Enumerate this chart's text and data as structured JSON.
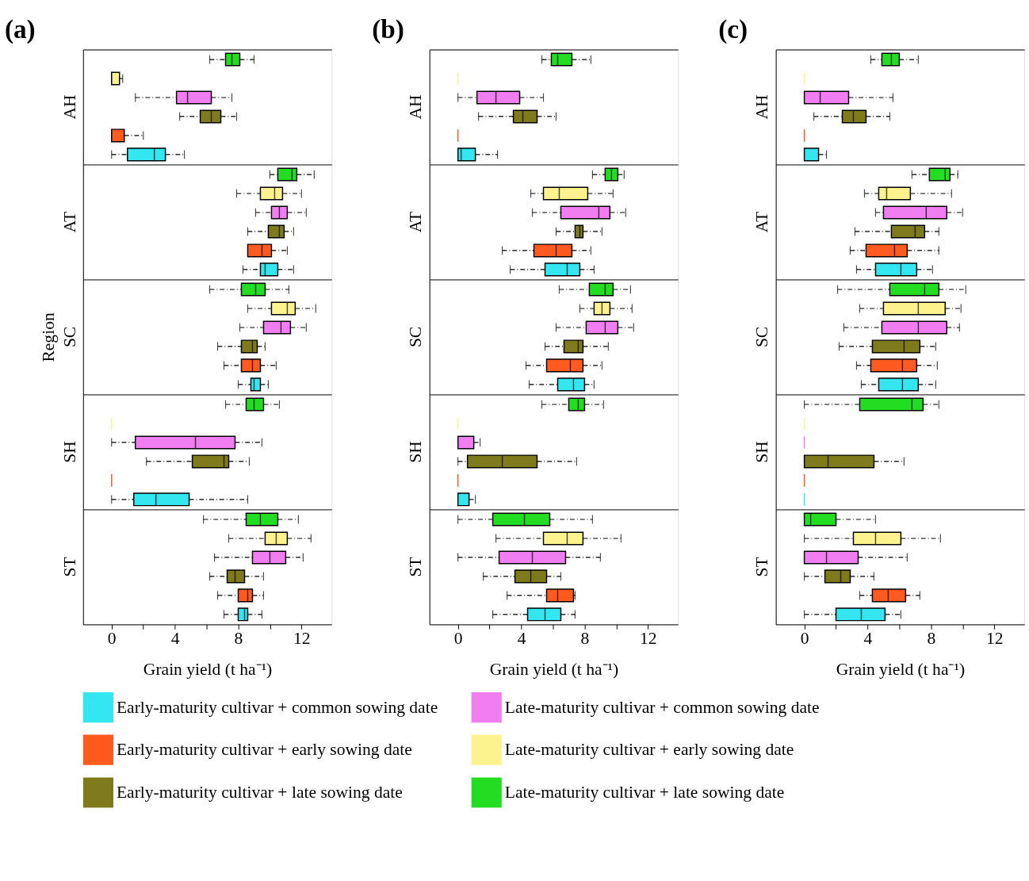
{
  "chart_data": [
    {
      "type": "box",
      "orientation": "horizontal",
      "title": "(a)",
      "xlabel": "Grain yield (t ha⁻¹)",
      "ylabel": "Region",
      "categories": [
        "AH",
        "AT",
        "SC",
        "SH",
        "ST"
      ],
      "xlim": [
        -1.8,
        13.9
      ],
      "xticks": [
        0,
        {
          "value": 2,
          "label": null
        },
        4,
        {
          "value": 6,
          "label": null
        },
        8,
        {
          "value": 10,
          "label": null
        },
        12
      ],
      "legend": "bottom",
      "series": [
        {
          "name": "Early-maturity cultivar + common sowing date",
          "color": "#33e6f0",
          "boxes": [
            {
              "low": 0,
              "q1": 1.0,
              "median": 2.7,
              "q3": 3.4,
              "high": 4.6
            },
            {
              "low": 8.3,
              "q1": 9.4,
              "median": 9.7,
              "q3": 10.5,
              "high": 11.5
            },
            {
              "low": 8.0,
              "q1": 8.8,
              "median": 9.0,
              "q3": 9.4,
              "high": 9.9
            },
            {
              "low": 0,
              "q1": 1.4,
              "median": 2.8,
              "q3": 4.9,
              "high": 8.6
            },
            {
              "low": 7.1,
              "q1": 8.0,
              "median": 8.4,
              "q3": 8.6,
              "high": 9.5
            }
          ]
        },
        {
          "name": "Early-maturity cultivar + early sowing date",
          "color": "#ff5a1f",
          "boxes": [
            {
              "low": 0,
              "q1": 0,
              "median": 0,
              "q3": 0.8,
              "high": 2.0
            },
            {
              "low": 8.6,
              "q1": 8.6,
              "median": 9.5,
              "q3": 10.1,
              "high": 11.1
            },
            {
              "low": 7.1,
              "q1": 8.2,
              "median": 8.9,
              "q3": 9.4,
              "high": 10.4
            },
            {
              "low": 0,
              "q1": 0,
              "median": 0,
              "q3": 0,
              "high": 0
            },
            {
              "low": 6.7,
              "q1": 8.0,
              "median": 8.6,
              "q3": 8.9,
              "high": 9.6
            }
          ]
        },
        {
          "name": "Early-maturity cultivar + late sowing date",
          "color": "#7f7a1c",
          "boxes": [
            {
              "low": 4.3,
              "q1": 5.6,
              "median": 6.3,
              "q3": 6.9,
              "high": 7.9
            },
            {
              "low": 8.6,
              "q1": 9.9,
              "median": 10.6,
              "q3": 10.9,
              "high": 11.5
            },
            {
              "low": 6.7,
              "q1": 8.2,
              "median": 8.9,
              "q3": 9.2,
              "high": 9.7
            },
            {
              "low": 2.2,
              "q1": 5.1,
              "median": 7.1,
              "q3": 7.4,
              "high": 8.7
            },
            {
              "low": 6.2,
              "q1": 7.3,
              "median": 7.8,
              "q3": 8.4,
              "high": 9.6
            }
          ]
        },
        {
          "name": "Late-maturity cultivar + common sowing date",
          "color": "#f07ef0",
          "boxes": [
            {
              "low": 1.5,
              "q1": 4.1,
              "median": 4.8,
              "q3": 6.3,
              "high": 7.6
            },
            {
              "low": 9.1,
              "q1": 10.1,
              "median": 10.6,
              "q3": 11.1,
              "high": 12.3
            },
            {
              "low": 8.1,
              "q1": 9.6,
              "median": 10.7,
              "q3": 11.3,
              "high": 12.3
            },
            {
              "low": 0,
              "q1": 1.5,
              "median": 5.3,
              "q3": 7.8,
              "high": 9.5
            },
            {
              "low": 6.5,
              "q1": 8.9,
              "median": 10.0,
              "q3": 11.0,
              "high": 12.1
            }
          ]
        },
        {
          "name": "Late-maturity cultivar + early sowing date",
          "color": "#fcf38f",
          "boxes": [
            {
              "low": 0,
              "q1": 0,
              "median": 0,
              "q3": 0.5,
              "high": 0.7
            },
            {
              "low": 7.9,
              "q1": 9.4,
              "median": 10.3,
              "q3": 10.8,
              "high": 12.0
            },
            {
              "low": 8.6,
              "q1": 10.1,
              "median": 11.1,
              "q3": 11.6,
              "high": 12.9
            },
            {
              "low": 0,
              "q1": 0,
              "median": 0,
              "q3": 0,
              "high": 0
            },
            {
              "low": 7.4,
              "q1": 9.7,
              "median": 10.4,
              "q3": 11.1,
              "high": 12.6
            }
          ]
        },
        {
          "name": "Late-maturity cultivar + late sowing date",
          "color": "#22dd22",
          "boxes": [
            {
              "low": 6.2,
              "q1": 7.2,
              "median": 7.6,
              "q3": 8.1,
              "high": 9.0
            },
            {
              "low": 10.0,
              "q1": 10.5,
              "median": 11.4,
              "q3": 11.7,
              "high": 12.8
            },
            {
              "low": 6.2,
              "q1": 8.2,
              "median": 9.1,
              "q3": 9.7,
              "high": 11.2
            },
            {
              "low": 7.2,
              "q1": 8.5,
              "median": 9.0,
              "q3": 9.6,
              "high": 10.6
            },
            {
              "low": 5.8,
              "q1": 8.5,
              "median": 9.4,
              "q3": 10.5,
              "high": 11.8
            }
          ]
        }
      ]
    },
    {
      "type": "box",
      "orientation": "horizontal",
      "title": "(b)",
      "xlabel": "Grain yield (t ha⁻¹)",
      "categories": [
        "AH",
        "AT",
        "SC",
        "SH",
        "ST"
      ],
      "xlim": [
        -1.8,
        13.9
      ],
      "xticks": [
        0,
        {
          "value": 2,
          "label": null
        },
        4,
        {
          "value": 6,
          "label": null
        },
        8,
        {
          "value": 10,
          "label": null
        },
        12
      ],
      "legend": "bottom",
      "series": [
        {
          "name": "Early-maturity cultivar + common sowing date",
          "color": "#33e6f0",
          "boxes": [
            {
              "low": 0,
              "q1": 0,
              "median": 0.2,
              "q3": 1.1,
              "high": 2.5
            },
            {
              "low": 3.3,
              "q1": 5.5,
              "median": 6.9,
              "q3": 7.7,
              "high": 8.6
            },
            {
              "low": 4.5,
              "q1": 6.3,
              "median": 7.3,
              "q3": 8.0,
              "high": 8.6
            },
            {
              "low": 0,
              "q1": 0,
              "median": 0,
              "q3": 0.7,
              "high": 1.1
            },
            {
              "low": 2.2,
              "q1": 4.4,
              "median": 5.5,
              "q3": 6.5,
              "high": 7.4
            }
          ]
        },
        {
          "name": "Early-maturity cultivar + early sowing date",
          "color": "#ff5a1f",
          "boxes": [
            {
              "low": 0,
              "q1": 0,
              "median": 0,
              "q3": 0,
              "high": 0
            },
            {
              "low": 2.8,
              "q1": 4.8,
              "median": 6.2,
              "q3": 7.2,
              "high": 8.4
            },
            {
              "low": 4.3,
              "q1": 5.6,
              "median": 7.1,
              "q3": 7.9,
              "high": 9.1
            },
            {
              "low": 0,
              "q1": 0,
              "median": 0,
              "q3": 0,
              "high": 0
            },
            {
              "low": 3.1,
              "q1": 5.6,
              "median": 6.3,
              "q3": 7.3,
              "high": 7.4
            }
          ]
        },
        {
          "name": "Early-maturity cultivar + late sowing date",
          "color": "#7f7a1c",
          "boxes": [
            {
              "low": 1.3,
              "q1": 3.5,
              "median": 4.1,
              "q3": 5.0,
              "high": 6.2
            },
            {
              "low": 6.2,
              "q1": 7.4,
              "median": 7.7,
              "q3": 7.9,
              "high": 9.1
            },
            {
              "low": 5.5,
              "q1": 6.7,
              "median": 7.6,
              "q3": 7.9,
              "high": 9.5
            },
            {
              "low": 0,
              "q1": 0.6,
              "median": 2.8,
              "q3": 5.0,
              "high": 7.5
            },
            {
              "low": 1.6,
              "q1": 3.6,
              "median": 4.6,
              "q3": 5.6,
              "high": 6.5
            }
          ]
        },
        {
          "name": "Late-maturity cultivar + common sowing date",
          "color": "#f07ef0",
          "boxes": [
            {
              "low": 0,
              "q1": 1.2,
              "median": 2.4,
              "q3": 3.9,
              "high": 5.4
            },
            {
              "low": 4.7,
              "q1": 6.5,
              "median": 8.9,
              "q3": 9.6,
              "high": 10.6
            },
            {
              "low": 6.2,
              "q1": 8.1,
              "median": 9.3,
              "q3": 10.1,
              "high": 11.1
            },
            {
              "low": 0,
              "q1": 0,
              "median": 0,
              "q3": 1.0,
              "high": 1.4
            },
            {
              "low": 0,
              "q1": 2.6,
              "median": 4.7,
              "q3": 6.8,
              "high": 9.0
            }
          ]
        },
        {
          "name": "Late-maturity cultivar + early sowing date",
          "color": "#fcf38f",
          "boxes": [
            {
              "low": 0,
              "q1": 0,
              "median": 0,
              "q3": 0,
              "high": 0
            },
            {
              "low": 4.6,
              "q1": 5.4,
              "median": 6.4,
              "q3": 8.2,
              "high": 9.8
            },
            {
              "low": 7.7,
              "q1": 8.6,
              "median": 9.1,
              "q3": 9.6,
              "high": 11.0
            },
            {
              "low": 0,
              "q1": 0,
              "median": 0,
              "q3": 0,
              "high": 0
            },
            {
              "low": 2.4,
              "q1": 5.4,
              "median": 6.9,
              "q3": 7.9,
              "high": 10.3
            }
          ]
        },
        {
          "name": "Late-maturity cultivar + late sowing date",
          "color": "#22dd22",
          "boxes": [
            {
              "low": 5.3,
              "q1": 5.9,
              "median": 6.3,
              "q3": 7.2,
              "high": 8.4
            },
            {
              "low": 8.5,
              "q1": 9.3,
              "median": 9.7,
              "q3": 10.1,
              "high": 10.5
            },
            {
              "low": 6.4,
              "q1": 8.3,
              "median": 9.3,
              "q3": 9.8,
              "high": 10.9
            },
            {
              "low": 5.3,
              "q1": 7.0,
              "median": 7.6,
              "q3": 8.0,
              "high": 9.2
            },
            {
              "low": 0,
              "q1": 2.2,
              "median": 4.2,
              "q3": 5.8,
              "high": 8.5
            }
          ]
        }
      ]
    },
    {
      "type": "box",
      "orientation": "horizontal",
      "title": "(c)",
      "xlabel": "Grain yield (t ha⁻¹)",
      "categories": [
        "AH",
        "AT",
        "SC",
        "SH",
        "ST"
      ],
      "xlim": [
        -1.8,
        13.9
      ],
      "xticks": [
        0,
        {
          "value": 2,
          "label": null
        },
        4,
        {
          "value": 6,
          "label": null
        },
        8,
        {
          "value": 10,
          "label": null
        },
        12
      ],
      "legend": "bottom",
      "series": [
        {
          "name": "Early-maturity cultivar + common sowing date",
          "color": "#33e6f0",
          "boxes": [
            {
              "low": 0,
              "q1": 0,
              "median": 0,
              "q3": 0.9,
              "high": 1.4
            },
            {
              "low": 3.3,
              "q1": 4.5,
              "median": 6.1,
              "q3": 7.1,
              "high": 8.1
            },
            {
              "low": 3.6,
              "q1": 4.7,
              "median": 6.2,
              "q3": 7.2,
              "high": 8.3
            },
            {
              "low": 0,
              "q1": 0,
              "median": 0,
              "q3": 0,
              "high": 0
            },
            {
              "low": 0,
              "q1": 2.0,
              "median": 3.6,
              "q3": 5.1,
              "high": 6.1
            }
          ]
        },
        {
          "name": "Early-maturity cultivar + early sowing date",
          "color": "#ff5a1f",
          "boxes": [
            {
              "low": 0,
              "q1": 0,
              "median": 0,
              "q3": 0,
              "high": 0
            },
            {
              "low": 2.9,
              "q1": 3.9,
              "median": 5.7,
              "q3": 6.5,
              "high": 8.5
            },
            {
              "low": 3.3,
              "q1": 4.2,
              "median": 6.2,
              "q3": 7.1,
              "high": 8.4
            },
            {
              "low": 0,
              "q1": 0,
              "median": 0,
              "q3": 0,
              "high": 0
            },
            {
              "low": 3.5,
              "q1": 4.3,
              "median": 5.3,
              "q3": 6.4,
              "high": 7.3
            }
          ]
        },
        {
          "name": "Early-maturity cultivar + late sowing date",
          "color": "#7f7a1c",
          "boxes": [
            {
              "low": 0.6,
              "q1": 2.4,
              "median": 3.1,
              "q3": 3.9,
              "high": 5.4
            },
            {
              "low": 3.2,
              "q1": 5.5,
              "median": 7.0,
              "q3": 7.6,
              "high": 8.5
            },
            {
              "low": 2.2,
              "q1": 4.3,
              "median": 6.3,
              "q3": 7.3,
              "high": 8.3
            },
            {
              "low": 0,
              "q1": 0,
              "median": 1.5,
              "q3": 4.4,
              "high": 6.3
            },
            {
              "low": 0,
              "q1": 1.3,
              "median": 2.3,
              "q3": 2.9,
              "high": 4.4
            }
          ]
        },
        {
          "name": "Late-maturity cultivar + common sowing date",
          "color": "#f07ef0",
          "boxes": [
            {
              "low": 0,
              "q1": 0,
              "median": 1.0,
              "q3": 2.8,
              "high": 5.6
            },
            {
              "low": 4.5,
              "q1": 5.0,
              "median": 7.7,
              "q3": 9.0,
              "high": 10.0
            },
            {
              "low": 2.5,
              "q1": 4.9,
              "median": 7.2,
              "q3": 9.0,
              "high": 9.8
            },
            {
              "low": 0,
              "q1": 0,
              "median": 0,
              "q3": 0,
              "high": 0
            },
            {
              "low": 0,
              "q1": 0,
              "median": 1.4,
              "q3": 3.4,
              "high": 6.5
            }
          ]
        },
        {
          "name": "Late-maturity cultivar + early sowing date",
          "color": "#fcf38f",
          "boxes": [
            {
              "low": 0,
              "q1": 0,
              "median": 0,
              "q3": 0,
              "high": 0
            },
            {
              "low": 3.8,
              "q1": 4.7,
              "median": 5.2,
              "q3": 6.7,
              "high": 9.3
            },
            {
              "low": 3.5,
              "q1": 5.0,
              "median": 7.2,
              "q3": 8.9,
              "high": 9.9
            },
            {
              "low": 0,
              "q1": 0,
              "median": 0,
              "q3": 0,
              "high": 0
            },
            {
              "low": 0,
              "q1": 3.1,
              "median": 4.5,
              "q3": 6.1,
              "high": 8.6
            }
          ]
        },
        {
          "name": "Late-maturity cultivar + late sowing date",
          "color": "#22dd22",
          "boxes": [
            {
              "low": 4.2,
              "q1": 4.9,
              "median": 5.5,
              "q3": 6.0,
              "high": 7.2
            },
            {
              "low": 6.8,
              "q1": 7.9,
              "median": 8.9,
              "q3": 9.2,
              "high": 9.7
            },
            {
              "low": 2.1,
              "q1": 5.4,
              "median": 7.6,
              "q3": 8.5,
              "high": 10.2
            },
            {
              "low": 0,
              "q1": 3.5,
              "median": 6.8,
              "q3": 7.5,
              "high": 8.5
            },
            {
              "low": 0,
              "q1": 0,
              "median": 0.4,
              "q3": 2.0,
              "high": 4.5
            }
          ]
        }
      ]
    }
  ]
}
